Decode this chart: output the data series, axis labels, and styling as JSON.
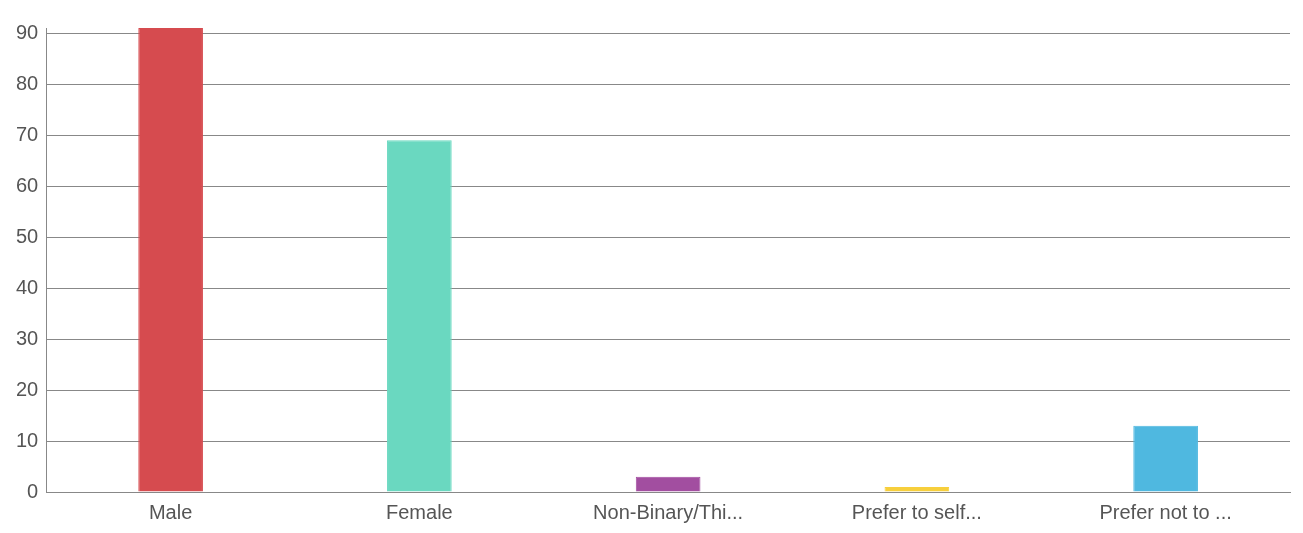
{
  "chart_data": {
    "type": "bar",
    "categories": [
      "Male",
      "Female",
      "Non-Binary/Thi...",
      "Prefer to self...",
      "Prefer not to ..."
    ],
    "values": [
      91,
      69,
      3,
      1,
      13
    ],
    "colors": [
      "#d64b4f",
      "#6ad8c0",
      "#a24ea0",
      "#f7cf3c",
      "#4fb8e0"
    ],
    "ylim": [
      0,
      91
    ],
    "yticks": [
      0,
      10,
      20,
      30,
      40,
      50,
      60,
      70,
      80,
      90
    ],
    "grid": "y",
    "legend": false
  }
}
